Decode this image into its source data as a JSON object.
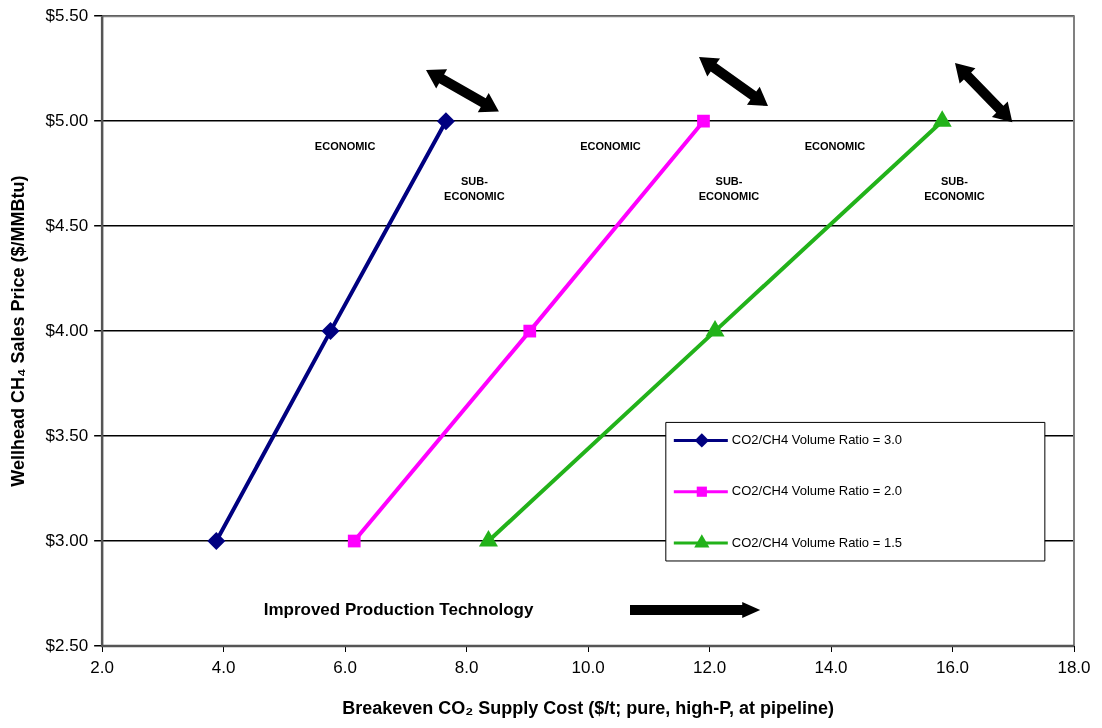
{
  "chart_data": {
    "type": "line",
    "xlabel": "Breakeven CO₂ Supply Cost ($/t; pure, high-P, at pipeline)",
    "ylabel": "Wellhead CH₄ Sales Price ($/MMBtu)",
    "series": [
      {
        "name": "CO2/CH4 Volume Ratio = 3.0",
        "color": "#000080",
        "marker": "diamond",
        "x": [
          3.88,
          5.76,
          7.66
        ],
        "values": [
          3.0,
          4.0,
          5.0
        ]
      },
      {
        "name": "CO2/CH4 Volume Ratio = 2.0",
        "color": "#ff00ff",
        "marker": "square",
        "x": [
          6.15,
          9.04,
          11.9
        ],
        "values": [
          3.0,
          4.0,
          5.0
        ]
      },
      {
        "name": "CO2/CH4 Volume Ratio = 1.5",
        "color": "#22b21a",
        "marker": "triangle",
        "x": [
          8.36,
          12.09,
          15.83
        ],
        "values": [
          3.0,
          4.0,
          5.0
        ]
      }
    ],
    "xlim": [
      2,
      18
    ],
    "xticks": [
      {
        "value": 2,
        "label": "2.0"
      },
      {
        "value": 4,
        "label": "4.0"
      },
      {
        "value": 6,
        "label": "6.0"
      },
      {
        "value": 8,
        "label": "8.0"
      },
      {
        "value": 10,
        "label": "10.0"
      },
      {
        "value": 12,
        "label": "12.0"
      },
      {
        "value": 14,
        "label": "14.0"
      },
      {
        "value": 16,
        "label": "16.0"
      },
      {
        "value": 18,
        "label": "18.0"
      }
    ],
    "ylim": [
      2.5,
      5.5
    ],
    "yticks": [
      {
        "value": 2.5,
        "label": "$2.50"
      },
      {
        "value": 3,
        "label": "$3.00"
      },
      {
        "value": 3.5,
        "label": "$3.50"
      },
      {
        "value": 4,
        "label": "$4.00"
      },
      {
        "value": 4.5,
        "label": "$4.50"
      },
      {
        "value": 5,
        "label": "$5.00"
      },
      {
        "value": 5.5,
        "label": "$5.50"
      }
    ],
    "grid": "y",
    "legend": "right",
    "line_style": "solid",
    "annotations": [
      "ECONOMIC",
      "SUB-\nECONOMIC",
      "ECONOMIC",
      "SUB-\nECONOMIC",
      "ECONOMIC",
      "SUB-\nECONOMIC",
      "Improved Production Technology"
    ]
  }
}
